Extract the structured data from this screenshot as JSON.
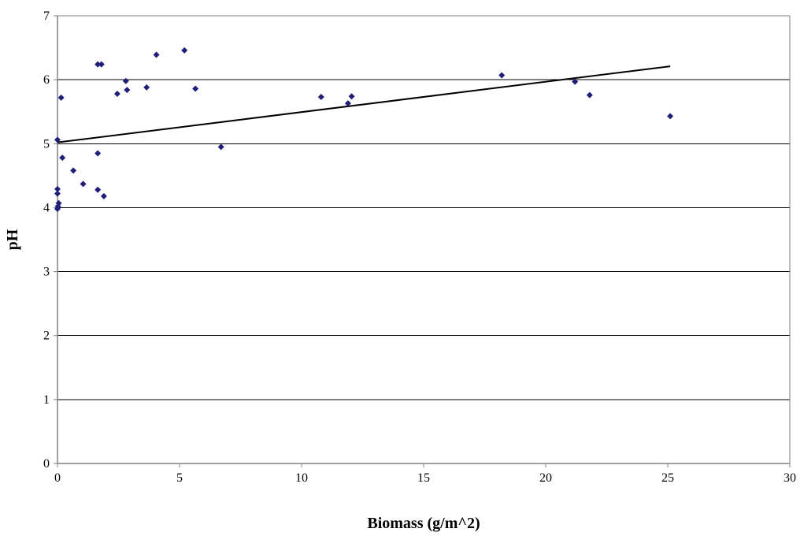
{
  "chart_data": {
    "type": "scatter",
    "title": "",
    "xlabel": "Biomass (g/m^2)",
    "ylabel": "pH",
    "xlim": [
      0,
      30
    ],
    "ylim": [
      0,
      7
    ],
    "xticks": [
      0,
      5,
      10,
      15,
      20,
      25,
      30
    ],
    "yticks": [
      0,
      1,
      2,
      3,
      4,
      5,
      6,
      7
    ],
    "grid": "horizontal major gridlines",
    "legend": "none",
    "marker": "diamond",
    "colors": {
      "marker": "#1f1f7a",
      "trendline": "#000000",
      "grid": "#000000",
      "axis": "#808080"
    },
    "series": [
      {
        "points": [
          {
            "x": 0.0,
            "y": 3.98
          },
          {
            "x": 0.02,
            "y": 4.02
          },
          {
            "x": 0.05,
            "y": 4.07
          },
          {
            "x": 0.0,
            "y": 4.22
          },
          {
            "x": 0.0,
            "y": 4.29
          },
          {
            "x": 0.0,
            "y": 5.06
          },
          {
            "x": 0.15,
            "y": 5.72
          },
          {
            "x": 0.2,
            "y": 4.78
          },
          {
            "x": 0.65,
            "y": 4.58
          },
          {
            "x": 1.05,
            "y": 4.37
          },
          {
            "x": 1.65,
            "y": 4.28
          },
          {
            "x": 1.65,
            "y": 4.85
          },
          {
            "x": 1.65,
            "y": 6.24
          },
          {
            "x": 1.8,
            "y": 6.24
          },
          {
            "x": 1.9,
            "y": 4.18
          },
          {
            "x": 2.45,
            "y": 5.78
          },
          {
            "x": 2.8,
            "y": 5.98
          },
          {
            "x": 2.85,
            "y": 5.84
          },
          {
            "x": 3.65,
            "y": 5.88
          },
          {
            "x": 4.05,
            "y": 6.39
          },
          {
            "x": 5.2,
            "y": 6.46
          },
          {
            "x": 5.65,
            "y": 5.86
          },
          {
            "x": 6.7,
            "y": 4.95
          },
          {
            "x": 10.8,
            "y": 5.73
          },
          {
            "x": 11.9,
            "y": 5.63
          },
          {
            "x": 12.05,
            "y": 5.74
          },
          {
            "x": 18.2,
            "y": 6.07
          },
          {
            "x": 21.2,
            "y": 5.97
          },
          {
            "x": 21.8,
            "y": 5.76
          },
          {
            "x": 25.1,
            "y": 5.43
          }
        ]
      }
    ],
    "trendline": {
      "type": "linear",
      "x": [
        0,
        25.1
      ],
      "y": [
        5.02,
        6.21
      ]
    }
  }
}
